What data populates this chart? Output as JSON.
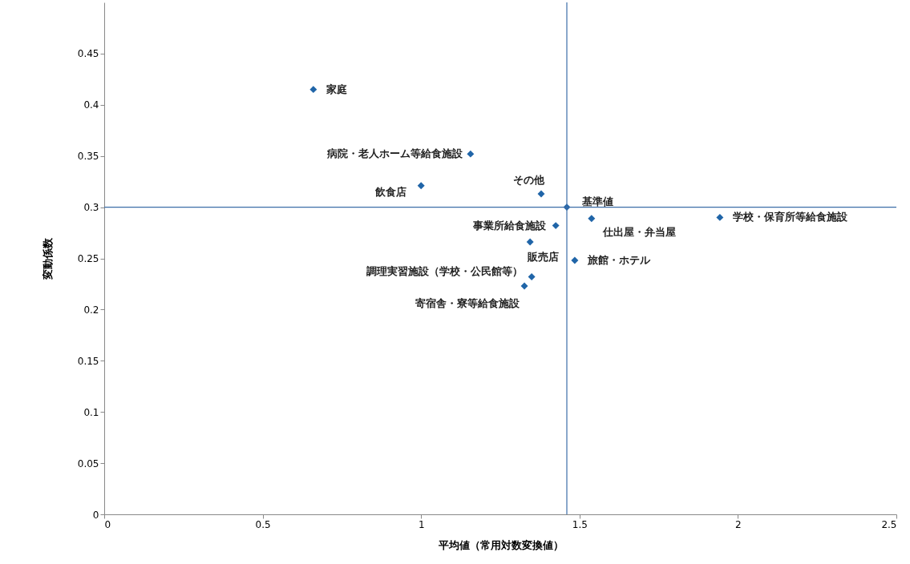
{
  "chart_data": {
    "type": "scatter",
    "xlabel": "平均値（常用対数変換値）",
    "ylabel": "変動係数",
    "x": [
      0.66,
      1.156,
      1.0,
      1.379,
      1.46,
      1.538,
      1.943,
      1.425,
      1.344,
      1.485,
      1.349,
      1.326
    ],
    "series": [
      {
        "color": "#2065a8",
        "values": [
          0.415,
          0.352,
          0.321,
          0.313,
          0.3,
          0.289,
          0.29,
          0.282,
          0.266,
          0.248,
          0.232,
          0.223
        ]
      }
    ],
    "annotations": [
      {
        "text": "家庭",
        "x": 0.66,
        "y": 0.415
      },
      {
        "text": "病院・老人ホーム等給食施設",
        "x": 1.156,
        "y": 0.352
      },
      {
        "text": "飲食店",
        "x": 1.0,
        "y": 0.321
      },
      {
        "text": "その他",
        "x": 1.379,
        "y": 0.313
      },
      {
        "text": "基準値",
        "x": 1.46,
        "y": 0.3
      },
      {
        "text": "仕出屋・弁当屋",
        "x": 1.538,
        "y": 0.289
      },
      {
        "text": "学校・保育所等給食施設",
        "x": 1.943,
        "y": 0.29
      },
      {
        "text": "事業所給食施設",
        "x": 1.425,
        "y": 0.282
      },
      {
        "text": "販売店",
        "x": 1.344,
        "y": 0.266
      },
      {
        "text": "旅館・ホテル",
        "x": 1.485,
        "y": 0.248
      },
      {
        "text": "調理実習施設（学校・公民館等）",
        "x": 1.349,
        "y": 0.232
      },
      {
        "text": "寄宿舎・寮等給食施設",
        "x": 1.326,
        "y": 0.223
      }
    ],
    "ref_lines": [
      {
        "axis": "x",
        "value": 1.46,
        "color": "#3c6ea8"
      },
      {
        "axis": "y",
        "value": 0.3,
        "color": "#3c6ea8"
      }
    ],
    "xlim": [
      0,
      2.5
    ],
    "xticks": [
      0,
      0.5,
      1,
      1.5,
      2,
      2.5
    ],
    "ylim": [
      0,
      0.5
    ],
    "yticks": [
      0,
      0.05,
      0.1,
      0.15,
      0.2,
      0.25,
      0.3,
      0.35,
      0.4,
      0.45
    ],
    "grid": false,
    "marker": "diamond"
  }
}
